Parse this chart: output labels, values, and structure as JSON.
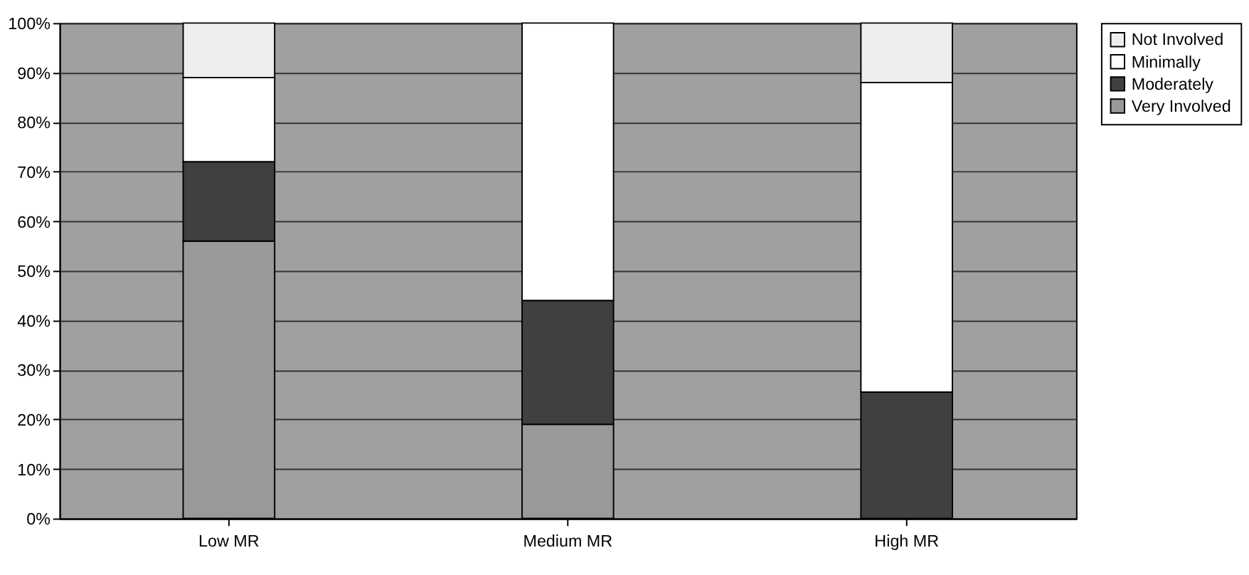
{
  "chart_data": {
    "type": "bar",
    "stacked": true,
    "categories": [
      "Low MR",
      "Medium MR",
      "High MR"
    ],
    "series": [
      {
        "name": "Very Involved",
        "color": "#999999",
        "values": [
          56,
          19,
          0
        ]
      },
      {
        "name": "Moderately",
        "color": "#404040",
        "values": [
          16,
          25,
          25.5
        ]
      },
      {
        "name": "Minimally",
        "color": "#ffffff",
        "values": [
          17,
          56,
          62.5
        ]
      },
      {
        "name": "Not Involved",
        "color": "#eeeeee",
        "values": [
          11,
          0,
          12
        ]
      }
    ],
    "ylim": [
      0,
      100
    ],
    "yticks": [
      {
        "value": 0,
        "label": "0%"
      },
      {
        "value": 10,
        "label": "10%"
      },
      {
        "value": 20,
        "label": "20%"
      },
      {
        "value": 30,
        "label": "30%"
      },
      {
        "value": 40,
        "label": "40%"
      },
      {
        "value": 50,
        "label": "50%"
      },
      {
        "value": 60,
        "label": "60%"
      },
      {
        "value": 70,
        "label": "70%"
      },
      {
        "value": 80,
        "label": "80%"
      },
      {
        "value": 90,
        "label": "90%"
      },
      {
        "value": 100,
        "label": "100%"
      }
    ],
    "grid": "y",
    "legend": "right"
  }
}
